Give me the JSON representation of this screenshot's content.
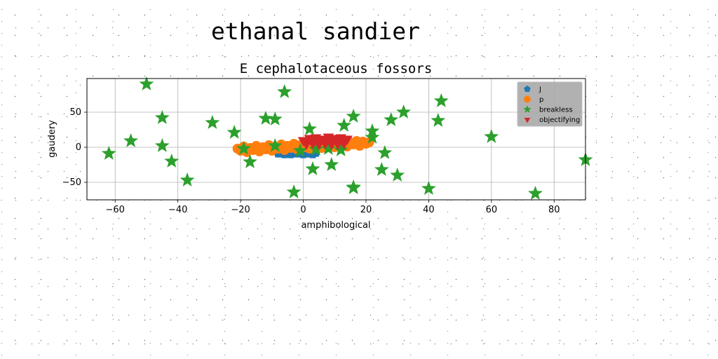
{
  "chart_data": {
    "type": "scatter",
    "suptitle": "ethanal sandier",
    "title": "E cephalotaceous fossors",
    "xlabel": "amphibological",
    "ylabel": "gaudery",
    "xlim": [
      -69,
      90
    ],
    "ylim": [
      -75,
      98
    ],
    "xticks": [
      -60,
      -40,
      -20,
      0,
      20,
      40,
      60,
      80
    ],
    "yticks": [
      -50,
      0,
      50
    ],
    "grid": true,
    "legend_position": "top-right",
    "series": [
      {
        "name": "J",
        "color": "#1f77b4",
        "marker": "pentagon",
        "points": [
          [
            -8,
            -9
          ],
          [
            -6,
            -10
          ],
          [
            -4,
            -10
          ],
          [
            -2,
            -9
          ],
          [
            0,
            -10
          ],
          [
            2,
            -9
          ],
          [
            4,
            -8
          ],
          [
            -7,
            -8
          ],
          [
            -3,
            -8
          ],
          [
            1,
            -8
          ],
          [
            -5,
            -9
          ],
          [
            3,
            -10
          ]
        ]
      },
      {
        "name": "p",
        "color": "#ff7f0e",
        "marker": "circle",
        "points": [
          [
            -20,
            -5
          ],
          [
            -18,
            -3
          ],
          [
            -16,
            -4
          ],
          [
            -14,
            -2
          ],
          [
            -12,
            -3
          ],
          [
            -10,
            -1
          ],
          [
            -8,
            -2
          ],
          [
            -6,
            0
          ],
          [
            -4,
            -1
          ],
          [
            -2,
            1
          ],
          [
            0,
            0
          ],
          [
            2,
            2
          ],
          [
            4,
            1
          ],
          [
            6,
            3
          ],
          [
            8,
            2
          ],
          [
            10,
            4
          ],
          [
            12,
            3
          ],
          [
            14,
            5
          ],
          [
            16,
            4
          ],
          [
            18,
            6
          ],
          [
            20,
            5
          ],
          [
            -19,
            1
          ],
          [
            -17,
            -1
          ],
          [
            -15,
            2
          ],
          [
            -13,
            0
          ],
          [
            -11,
            3
          ],
          [
            -9,
            1
          ],
          [
            -7,
            4
          ],
          [
            -5,
            2
          ],
          [
            -3,
            5
          ],
          [
            -1,
            3
          ],
          [
            1,
            6
          ],
          [
            3,
            4
          ],
          [
            5,
            7
          ],
          [
            7,
            5
          ],
          [
            9,
            8
          ],
          [
            11,
            6
          ],
          [
            13,
            9
          ],
          [
            15,
            7
          ],
          [
            17,
            9
          ],
          [
            19,
            8
          ],
          [
            21,
            7
          ],
          [
            -21,
            -2
          ],
          [
            -18,
            -7
          ],
          [
            -14,
            -6
          ],
          [
            -10,
            -5
          ],
          [
            -6,
            -4
          ],
          [
            -2,
            -3
          ],
          [
            2,
            -2
          ],
          [
            6,
            -1
          ],
          [
            10,
            0
          ],
          [
            14,
            1
          ],
          [
            18,
            2
          ]
        ]
      },
      {
        "name": "breakless",
        "color": "#2ca02c",
        "marker": "star",
        "points": [
          [
            -62,
            -9
          ],
          [
            -55,
            9
          ],
          [
            -50,
            90
          ],
          [
            -45,
            42
          ],
          [
            -45,
            2
          ],
          [
            -42,
            -20
          ],
          [
            -37,
            -47
          ],
          [
            -29,
            35
          ],
          [
            -22,
            21
          ],
          [
            -19,
            -2
          ],
          [
            -17,
            -21
          ],
          [
            -12,
            41
          ],
          [
            -9,
            40
          ],
          [
            -9,
            2
          ],
          [
            -6,
            79
          ],
          [
            -3,
            -64
          ],
          [
            2,
            26
          ],
          [
            3,
            -31
          ],
          [
            9,
            -25
          ],
          [
            13,
            31
          ],
          [
            16,
            44
          ],
          [
            16,
            -58
          ],
          [
            16,
            -57
          ],
          [
            22,
            14
          ],
          [
            22,
            23
          ],
          [
            25,
            -32
          ],
          [
            26,
            -8
          ],
          [
            28,
            39
          ],
          [
            30,
            -40
          ],
          [
            32,
            50
          ],
          [
            40,
            -59
          ],
          [
            43,
            38
          ],
          [
            44,
            66
          ],
          [
            60,
            15
          ],
          [
            74,
            -66
          ],
          [
            90,
            -18
          ],
          [
            -1,
            -5
          ],
          [
            4,
            -3
          ],
          [
            8,
            -2
          ],
          [
            12,
            -4
          ]
        ]
      },
      {
        "name": "objectifying",
        "color": "#d62728",
        "marker": "triangle_down",
        "points": [
          [
            0,
            10
          ],
          [
            1,
            8
          ],
          [
            2,
            13
          ],
          [
            3,
            9
          ],
          [
            4,
            14
          ],
          [
            5,
            10
          ],
          [
            6,
            12
          ],
          [
            7,
            8
          ],
          [
            8,
            15
          ],
          [
            9,
            11
          ],
          [
            10,
            13
          ],
          [
            11,
            9
          ],
          [
            12,
            14
          ],
          [
            13,
            10
          ],
          [
            14,
            12
          ],
          [
            1,
            5
          ],
          [
            3,
            6
          ],
          [
            5,
            5
          ],
          [
            7,
            6
          ],
          [
            9,
            5
          ],
          [
            11,
            5
          ],
          [
            13,
            6
          ]
        ]
      }
    ]
  }
}
